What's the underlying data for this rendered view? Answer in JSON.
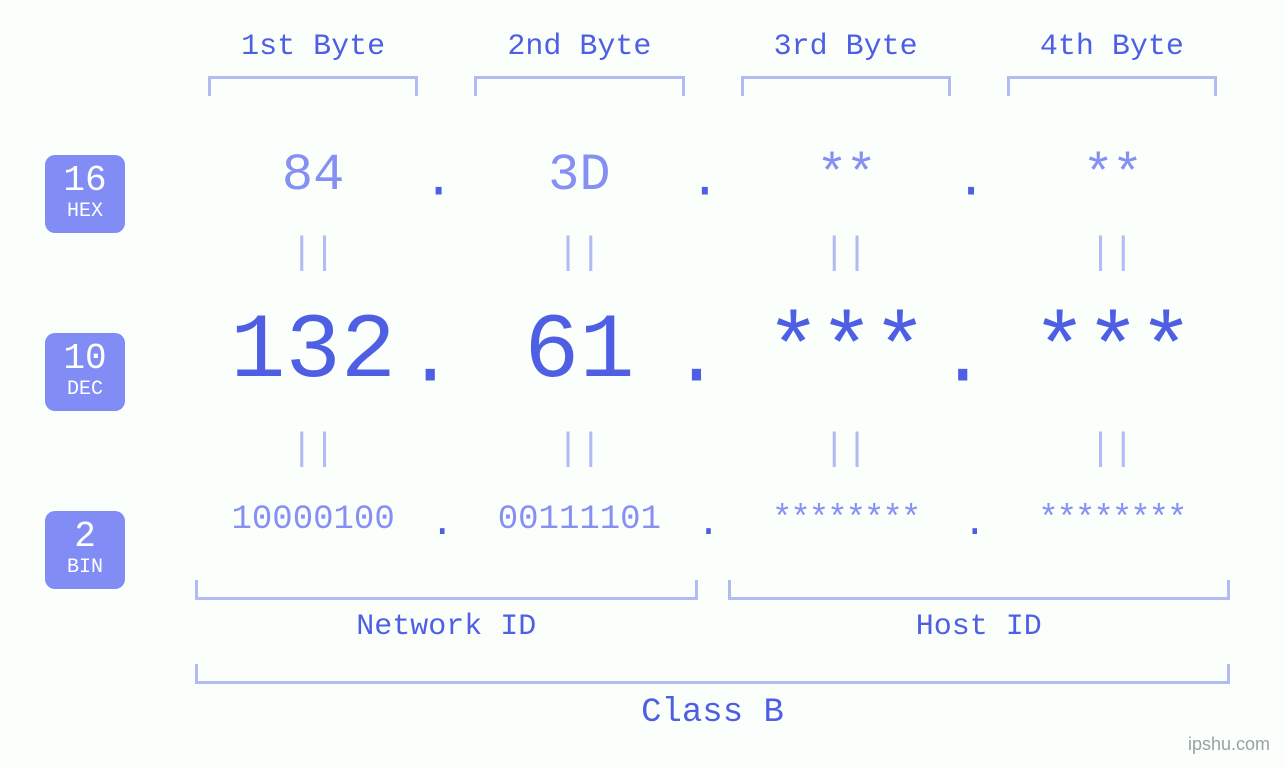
{
  "type": "infographic",
  "background_color": "#fafffc",
  "colors": {
    "primary": "#4e5fe3",
    "secondary": "#8690f3",
    "bracket": "#b2bbf4",
    "badge_bg": "#818df4",
    "badge_fg": "#ffffff",
    "watermark": "#9aa0a8"
  },
  "typography": {
    "font_family": "Courier New, monospace",
    "byte_header_fontsize": 30,
    "hex_fontsize": 52,
    "dec_fontsize": 92,
    "bin_fontsize": 34,
    "equals_fontsize": 38,
    "mid_label_fontsize": 30,
    "class_label_fontsize": 34,
    "badge_num_fontsize": 36,
    "badge_lbl_fontsize": 20
  },
  "byte_headers": [
    "1st Byte",
    "2nd Byte",
    "3rd Byte",
    "4th Byte"
  ],
  "badges": {
    "hex": {
      "num": "16",
      "label": "HEX"
    },
    "dec": {
      "num": "10",
      "label": "DEC"
    },
    "bin": {
      "num": "2",
      "label": "BIN"
    }
  },
  "rows": {
    "hex": [
      "84",
      "3D",
      "**",
      "**"
    ],
    "dec": [
      "132",
      "61",
      "***",
      "***"
    ],
    "bin": [
      "10000100",
      "00111101",
      "********",
      "********"
    ]
  },
  "separators": {
    "equals": "||",
    "dot": "."
  },
  "groups": {
    "network": "Network ID",
    "host": "Host ID",
    "class": "Class B"
  },
  "watermark": "ipshu.com"
}
